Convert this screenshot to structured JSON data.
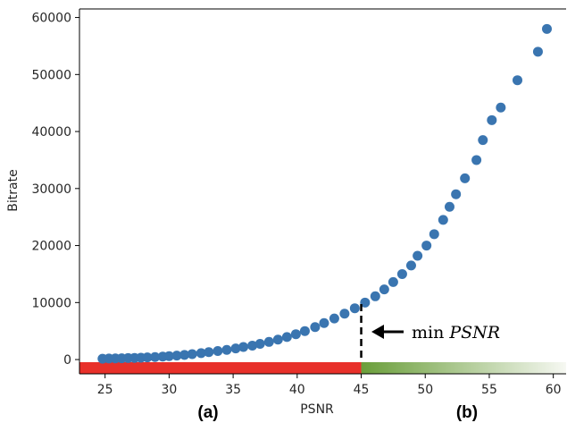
{
  "chart_data": {
    "type": "scatter",
    "title": "",
    "xlabel": "PSNR",
    "ylabel": "Bitrate",
    "xlim": [
      23,
      61
    ],
    "ylim": [
      -2500,
      61500
    ],
    "xticks": [
      25,
      30,
      35,
      40,
      45,
      50,
      55,
      60
    ],
    "yticks": [
      0,
      10000,
      20000,
      30000,
      40000,
      50000,
      60000
    ],
    "grid": false,
    "marker_color": "#3a75b0",
    "points": [
      {
        "x": 24.8,
        "y": 150
      },
      {
        "x": 25.3,
        "y": 180
      },
      {
        "x": 25.8,
        "y": 200
      },
      {
        "x": 26.3,
        "y": 230
      },
      {
        "x": 26.8,
        "y": 260
      },
      {
        "x": 27.3,
        "y": 290
      },
      {
        "x": 27.8,
        "y": 330
      },
      {
        "x": 28.3,
        "y": 380
      },
      {
        "x": 28.9,
        "y": 440
      },
      {
        "x": 29.5,
        "y": 520
      },
      {
        "x": 30.0,
        "y": 600
      },
      {
        "x": 30.6,
        "y": 700
      },
      {
        "x": 31.2,
        "y": 820
      },
      {
        "x": 31.8,
        "y": 960
      },
      {
        "x": 32.5,
        "y": 1120
      },
      {
        "x": 33.1,
        "y": 1300
      },
      {
        "x": 33.8,
        "y": 1500
      },
      {
        "x": 34.5,
        "y": 1700
      },
      {
        "x": 35.2,
        "y": 1950
      },
      {
        "x": 35.8,
        "y": 2200
      },
      {
        "x": 36.5,
        "y": 2450
      },
      {
        "x": 37.1,
        "y": 2750
      },
      {
        "x": 37.8,
        "y": 3100
      },
      {
        "x": 38.5,
        "y": 3500
      },
      {
        "x": 39.2,
        "y": 3950
      },
      {
        "x": 39.9,
        "y": 4450
      },
      {
        "x": 40.6,
        "y": 5000
      },
      {
        "x": 41.4,
        "y": 5700
      },
      {
        "x": 42.1,
        "y": 6400
      },
      {
        "x": 42.9,
        "y": 7200
      },
      {
        "x": 43.7,
        "y": 8050
      },
      {
        "x": 44.5,
        "y": 9000
      },
      {
        "x": 45.3,
        "y": 10000
      },
      {
        "x": 46.1,
        "y": 11100
      },
      {
        "x": 46.8,
        "y": 12300
      },
      {
        "x": 47.5,
        "y": 13600
      },
      {
        "x": 48.2,
        "y": 15000
      },
      {
        "x": 48.9,
        "y": 16500
      },
      {
        "x": 49.4,
        "y": 18200
      },
      {
        "x": 50.1,
        "y": 20000
      },
      {
        "x": 50.7,
        "y": 22000
      },
      {
        "x": 51.4,
        "y": 24500
      },
      {
        "x": 51.9,
        "y": 26800
      },
      {
        "x": 52.4,
        "y": 29000
      },
      {
        "x": 53.1,
        "y": 31800
      },
      {
        "x": 54.0,
        "y": 35000
      },
      {
        "x": 54.5,
        "y": 38500
      },
      {
        "x": 55.2,
        "y": 42000
      },
      {
        "x": 55.9,
        "y": 44200
      },
      {
        "x": 57.2,
        "y": 49000
      },
      {
        "x": 58.8,
        "y": 54000
      },
      {
        "x": 59.5,
        "y": 58000
      }
    ],
    "threshold_x": 45,
    "annotation": {
      "prefix": "min",
      "symbol": "PSNR"
    },
    "region_labels": {
      "left": "(a)",
      "right": "(b)"
    },
    "colors": {
      "bad_region": "#e8302a",
      "good_region_start": "#6a9e3a",
      "good_region_end": "#f6f8f2",
      "axes": "#000000"
    }
  }
}
